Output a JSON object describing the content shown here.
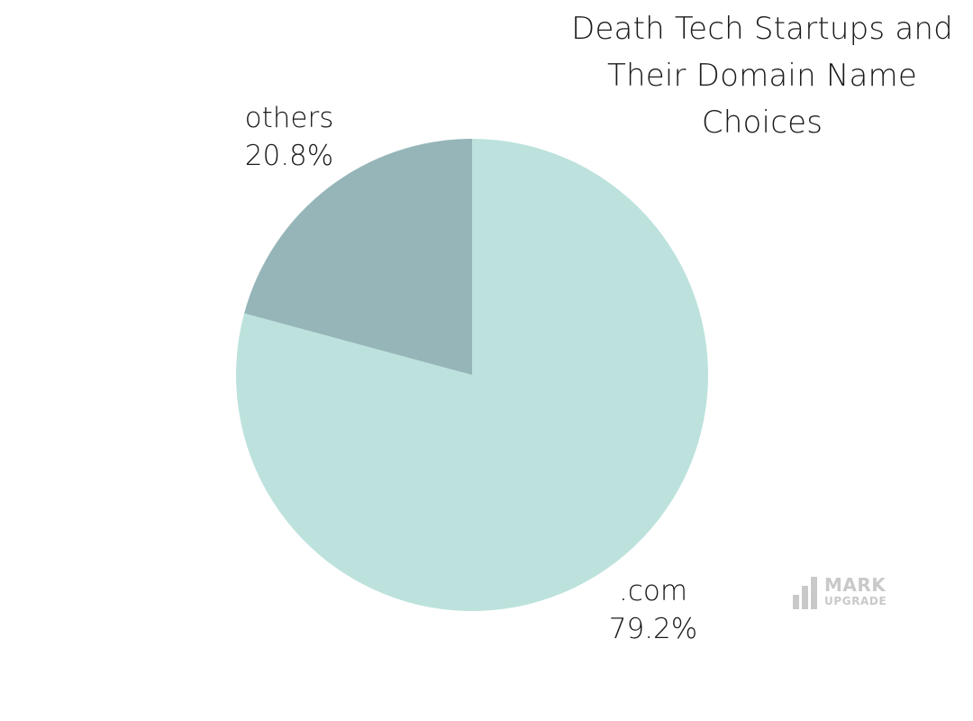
{
  "chart_data": {
    "type": "pie",
    "title_lines": [
      "Death Tech Startups and",
      "Their Domain Name",
      "Choices"
    ],
    "slices": [
      {
        "label": ".com",
        "value": 79.2,
        "value_label": "79.2%",
        "color": "#bde2dd"
      },
      {
        "label": "others",
        "value": 20.8,
        "value_label": "20.8%",
        "color": "#95b5b8"
      }
    ],
    "start_angle_deg": 0,
    "direction": "clockwise",
    "legend": "none"
  },
  "watermark": {
    "word1": "MARK",
    "word2": "UPGRADE",
    "color": "#c9c9c9"
  }
}
